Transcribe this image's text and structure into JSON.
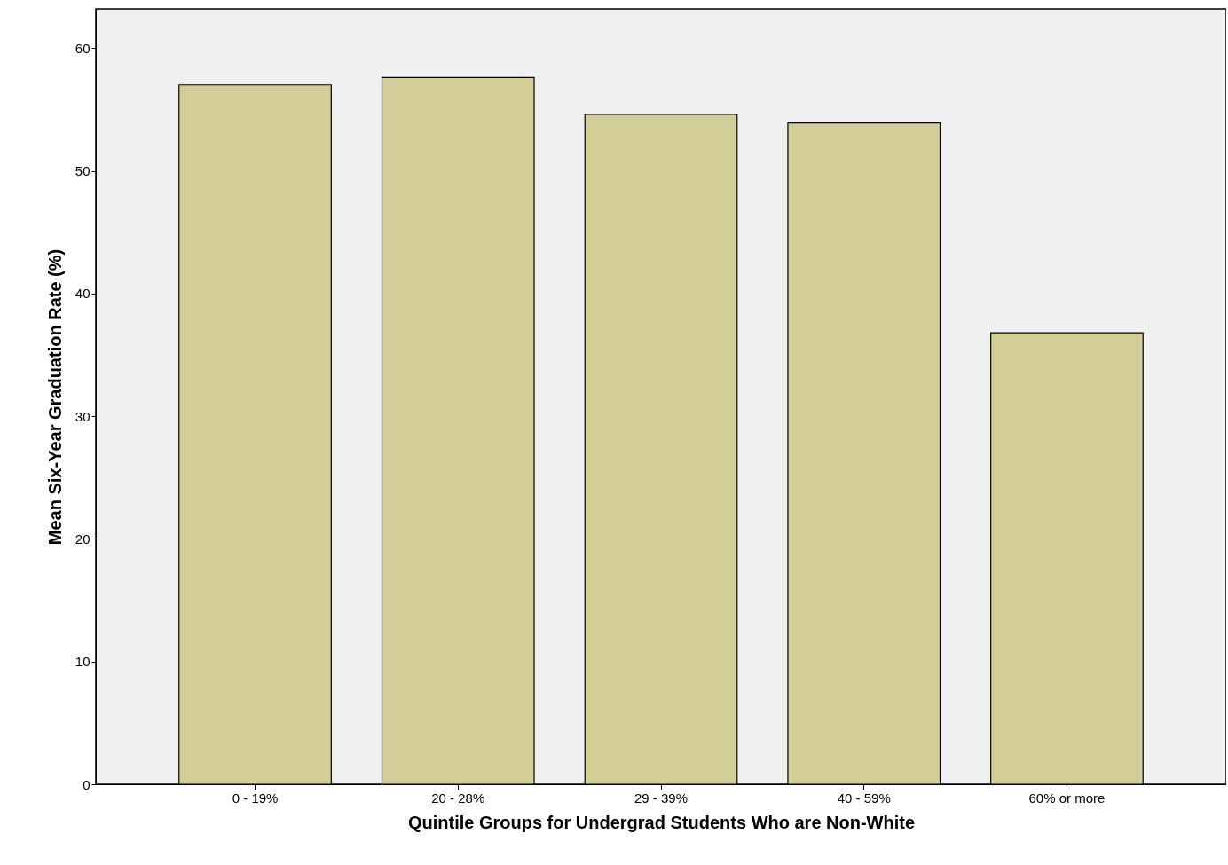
{
  "chart_data": {
    "type": "bar",
    "xlabel": "Quintile Groups for Undergrad Students Who are Non-White",
    "ylabel": "Mean Six-Year Graduation Rate (%)",
    "categories": [
      "0 - 19%",
      "20 - 28%",
      "29 - 39%",
      "40 - 59%",
      "60% or more"
    ],
    "values": [
      57.0,
      57.6,
      54.6,
      53.9,
      36.8
    ],
    "color": "#d3ce97",
    "ylim": [
      0,
      63.2
    ],
    "yticks": [
      0,
      10,
      20,
      30,
      40,
      50,
      60
    ],
    "grid": false
  }
}
